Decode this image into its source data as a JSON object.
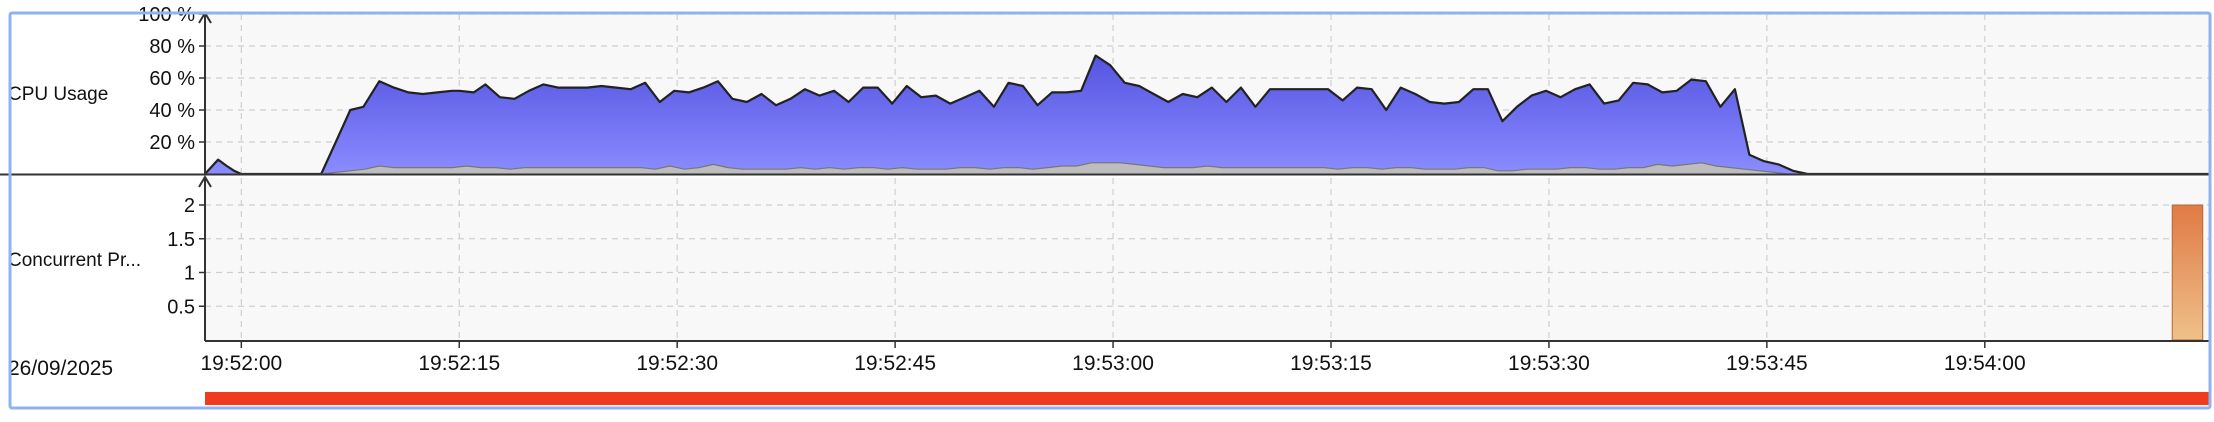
{
  "date_label": "26/09/2025",
  "colors": {
    "cpu_fill_top": "#5454e0",
    "cpu_fill_bottom": "#8a8cff",
    "cpu_line": "#222222",
    "sys_fill": "#bdbdbd",
    "concurrent_bar_top": "#e07a45",
    "concurrent_bar_bottom": "#efc08a",
    "timeline_bar": "#f03c1e",
    "selection_border": "#8fb2f0"
  },
  "chart_data": [
    {
      "type": "area",
      "name": "cpu-usage",
      "ylabel": "CPU Usage",
      "ylim": [
        0,
        100
      ],
      "yticks": [
        "20 %",
        "40 %",
        "60 %",
        "80 %",
        "100 %"
      ],
      "ytick_values": [
        20,
        40,
        60,
        80,
        100
      ],
      "grid": true,
      "series": [
        {
          "values": [
            [
              0,
              0
            ],
            [
              0.4,
              4
            ],
            [
              0.9,
              9
            ],
            [
              1.5,
              5
            ],
            [
              2,
              2
            ],
            [
              2.5,
              0
            ],
            [
              8,
              0
            ],
            [
              9,
              20
            ],
            [
              10,
              40
            ],
            [
              10.9,
              42
            ],
            [
              12,
              58
            ],
            [
              13,
              54
            ],
            [
              14,
              51
            ],
            [
              15,
              50
            ],
            [
              16,
              51
            ],
            [
              17,
              52
            ],
            [
              17.5,
              52
            ],
            [
              18.5,
              51
            ],
            [
              19.3,
              56
            ],
            [
              20.3,
              48
            ],
            [
              21.3,
              47
            ],
            [
              22.3,
              52
            ],
            [
              23.3,
              56
            ],
            [
              24.3,
              54
            ],
            [
              25.3,
              54
            ],
            [
              26.3,
              54
            ],
            [
              27.3,
              55
            ],
            [
              28.3,
              54
            ],
            [
              29.3,
              53
            ],
            [
              30.3,
              57
            ],
            [
              31.3,
              45
            ],
            [
              32.3,
              52
            ],
            [
              33.3,
              51
            ],
            [
              34.3,
              54
            ],
            [
              35.3,
              58
            ],
            [
              36.3,
              47
            ],
            [
              37.3,
              45
            ],
            [
              38.3,
              50
            ],
            [
              39.3,
              43
            ],
            [
              40.3,
              47
            ],
            [
              41.3,
              53
            ],
            [
              42.3,
              49
            ],
            [
              43.3,
              52
            ],
            [
              44.3,
              45
            ],
            [
              45.3,
              54
            ],
            [
              46.3,
              54
            ],
            [
              47.3,
              44
            ],
            [
              48.3,
              55
            ],
            [
              49.3,
              48
            ],
            [
              50.3,
              49
            ],
            [
              51.3,
              44
            ],
            [
              52.3,
              48
            ],
            [
              53.3,
              52
            ],
            [
              54.3,
              42
            ],
            [
              55.3,
              57
            ],
            [
              56.3,
              55
            ],
            [
              57.3,
              43
            ],
            [
              58.3,
              51
            ],
            [
              59.3,
              51
            ],
            [
              60.3,
              52
            ],
            [
              61.3,
              74
            ],
            [
              62.3,
              68
            ],
            [
              63.3,
              57
            ],
            [
              64.3,
              55
            ],
            [
              65.3,
              50
            ],
            [
              66.3,
              45
            ],
            [
              67.3,
              50
            ],
            [
              68.3,
              48
            ],
            [
              69.3,
              54
            ],
            [
              70.3,
              45
            ],
            [
              71.3,
              54
            ],
            [
              72.3,
              42
            ],
            [
              73.3,
              53
            ],
            [
              74.3,
              53
            ],
            [
              75.3,
              53
            ],
            [
              76.3,
              53
            ],
            [
              77.3,
              53
            ],
            [
              78.3,
              46
            ],
            [
              79.3,
              54
            ],
            [
              80.3,
              53
            ],
            [
              81.3,
              40
            ],
            [
              82.3,
              54
            ],
            [
              83.3,
              50
            ],
            [
              84.3,
              45
            ],
            [
              85.3,
              44
            ],
            [
              86.3,
              45
            ],
            [
              87.3,
              53
            ],
            [
              88.3,
              53
            ],
            [
              89.3,
              33
            ],
            [
              90.3,
              42
            ],
            [
              91.3,
              49
            ],
            [
              92.3,
              52
            ],
            [
              93.3,
              48
            ],
            [
              94.3,
              53
            ],
            [
              95.3,
              56
            ],
            [
              96.3,
              44
            ],
            [
              97.3,
              46
            ],
            [
              98.3,
              57
            ],
            [
              99.3,
              56
            ],
            [
              100.3,
              51
            ],
            [
              101.3,
              52
            ],
            [
              102.3,
              59
            ],
            [
              103.3,
              58
            ],
            [
              104.3,
              42
            ],
            [
              105.3,
              53
            ],
            [
              106.3,
              12
            ],
            [
              107.3,
              8
            ],
            [
              108.3,
              6
            ],
            [
              109.3,
              2
            ],
            [
              110.3,
              0
            ],
            [
              138,
              0
            ]
          ]
        },
        {
          "values": [
            [
              0,
              0
            ],
            [
              8,
              0
            ],
            [
              9,
              1
            ],
            [
              10,
              2
            ],
            [
              11,
              3
            ],
            [
              12,
              5
            ],
            [
              13,
              4
            ],
            [
              14,
              4
            ],
            [
              15,
              4
            ],
            [
              16,
              4
            ],
            [
              17,
              4
            ],
            [
              18,
              5
            ],
            [
              19,
              4
            ],
            [
              20,
              4
            ],
            [
              21,
              3
            ],
            [
              22,
              4
            ],
            [
              23,
              4
            ],
            [
              24,
              4
            ],
            [
              25,
              4
            ],
            [
              26,
              4
            ],
            [
              27,
              4
            ],
            [
              28,
              4
            ],
            [
              29,
              4
            ],
            [
              30,
              4
            ],
            [
              31,
              3
            ],
            [
              32,
              5
            ],
            [
              33,
              3
            ],
            [
              34,
              4
            ],
            [
              35,
              6
            ],
            [
              36,
              4
            ],
            [
              37,
              3
            ],
            [
              38,
              3
            ],
            [
              39,
              3
            ],
            [
              40,
              3
            ],
            [
              41,
              4
            ],
            [
              42,
              3
            ],
            [
              43,
              4
            ],
            [
              44,
              3
            ],
            [
              45,
              4
            ],
            [
              46,
              4
            ],
            [
              47,
              3
            ],
            [
              48,
              4
            ],
            [
              49,
              3
            ],
            [
              50,
              3
            ],
            [
              51,
              3
            ],
            [
              52,
              4
            ],
            [
              53,
              4
            ],
            [
              54,
              3
            ],
            [
              55,
              4
            ],
            [
              56,
              4
            ],
            [
              57,
              3
            ],
            [
              58,
              4
            ],
            [
              59,
              5
            ],
            [
              60,
              5
            ],
            [
              61,
              7
            ],
            [
              62,
              7
            ],
            [
              63,
              7
            ],
            [
              64,
              6
            ],
            [
              65,
              5
            ],
            [
              66,
              4
            ],
            [
              67,
              4
            ],
            [
              68,
              4
            ],
            [
              69,
              5
            ],
            [
              70,
              4
            ],
            [
              71,
              4
            ],
            [
              72,
              4
            ],
            [
              73,
              4
            ],
            [
              74,
              4
            ],
            [
              75,
              4
            ],
            [
              76,
              4
            ],
            [
              77,
              4
            ],
            [
              78,
              3
            ],
            [
              79,
              4
            ],
            [
              80,
              4
            ],
            [
              81,
              3
            ],
            [
              82,
              4
            ],
            [
              83,
              4
            ],
            [
              84,
              3
            ],
            [
              85,
              3
            ],
            [
              86,
              3
            ],
            [
              87,
              4
            ],
            [
              88,
              4
            ],
            [
              89,
              2
            ],
            [
              90,
              2
            ],
            [
              91,
              3
            ],
            [
              92,
              3
            ],
            [
              93,
              3
            ],
            [
              94,
              4
            ],
            [
              95,
              4
            ],
            [
              96,
              3
            ],
            [
              97,
              3
            ],
            [
              98,
              4
            ],
            [
              99,
              4
            ],
            [
              100,
              6
            ],
            [
              101,
              5
            ],
            [
              102,
              6
            ],
            [
              103,
              7
            ],
            [
              104,
              5
            ],
            [
              105,
              4
            ],
            [
              106,
              3
            ],
            [
              107,
              2
            ],
            [
              108,
              1
            ],
            [
              109,
              0
            ],
            [
              138,
              0
            ]
          ]
        }
      ]
    },
    {
      "type": "bar",
      "name": "concurrent-processes",
      "ylabel": "Concurrent Pr...",
      "ylim": [
        0,
        2.4
      ],
      "yticks": [
        "0.5",
        "1",
        "1.5",
        "2"
      ],
      "ytick_values": [
        0.5,
        1,
        1.5,
        2
      ],
      "grid": true,
      "bars": [
        {
          "x_start": 135.4,
          "x_end": 137.5,
          "value": 2
        }
      ]
    }
  ],
  "x_axis": {
    "xlim": [
      0,
      138
    ],
    "ticks": [
      "19:52:00",
      "19:52:15",
      "19:52:30",
      "19:52:45",
      "19:53:00",
      "19:53:15",
      "19:53:30",
      "19:53:45",
      "19:54:00"
    ],
    "tick_values": [
      2.5,
      17.5,
      32.5,
      47.5,
      62.5,
      77.5,
      92.5,
      107.5,
      122.5
    ]
  },
  "timeline": {
    "x_start": 0,
    "x_end": 138
  }
}
